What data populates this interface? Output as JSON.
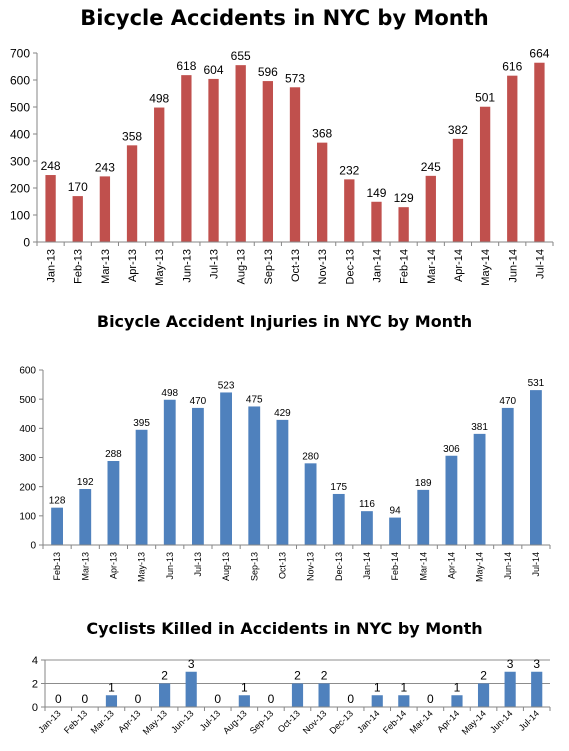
{
  "chart_data": [
    {
      "type": "bar",
      "title": "Bicycle Accidents in NYC by Month",
      "categories": [
        "Jan-13",
        "Feb-13",
        "Mar-13",
        "Apr-13",
        "May-13",
        "Jun-13",
        "Jul-13",
        "Aug-13",
        "Sep-13",
        "Oct-13",
        "Nov-13",
        "Dec-13",
        "Jan-14",
        "Feb-14",
        "Mar-14",
        "Apr-14",
        "May-14",
        "Jun-14",
        "Jul-14"
      ],
      "series": [
        {
          "values": [
            248,
            170,
            243,
            358,
            498,
            618,
            604,
            655,
            596,
            573,
            368,
            232,
            149,
            129,
            245,
            382,
            501,
            616,
            664
          ],
          "color": "#c0504d"
        }
      ],
      "ylim": [
        0,
        700
      ],
      "yticks": [
        0,
        100,
        200,
        300,
        400,
        500,
        600,
        700
      ],
      "grid": false,
      "data_labels": true
    },
    {
      "type": "bar",
      "title": "Bicycle Accident Injuries in NYC by Month",
      "categories": [
        "Feb-13",
        "Mar-13",
        "Apr-13",
        "May-13",
        "Jun-13",
        "Jul-13",
        "Aug-13",
        "Sep-13",
        "Oct-13",
        "Nov-13",
        "Dec-13",
        "Jan-14",
        "Feb-14",
        "Mar-14",
        "Apr-14",
        "May-14",
        "Jun-14",
        "Jul-14"
      ],
      "series": [
        {
          "values": [
            128,
            192,
            288,
            395,
            498,
            470,
            523,
            475,
            429,
            280,
            175,
            116,
            94,
            189,
            306,
            381,
            470,
            531
          ],
          "color": "#4f81bd"
        }
      ],
      "ylim": [
        0,
        600
      ],
      "yticks": [
        0,
        100,
        200,
        300,
        400,
        500,
        600
      ],
      "grid": false,
      "data_labels": true
    },
    {
      "type": "bar",
      "title": "Cyclists Killed in Accidents in NYC by Month",
      "categories": [
        "Jan-13",
        "Feb-13",
        "Mar-13",
        "Apr-13",
        "May-13",
        "Jun-13",
        "Jul-13",
        "Aug-13",
        "Sep-13",
        "Oct-13",
        "Nov-13",
        "Dec-13",
        "Jan-14",
        "Feb-14",
        "Mar-14",
        "Apr-14",
        "May-14",
        "Jun-14",
        "Jul-14"
      ],
      "series": [
        {
          "values": [
            0,
            0,
            1,
            0,
            2,
            3,
            0,
            1,
            0,
            2,
            2,
            0,
            1,
            1,
            0,
            1,
            2,
            3,
            3
          ],
          "color": "#4f81bd"
        }
      ],
      "ylim": [
        0,
        4
      ],
      "yticks": [
        0,
        2,
        4
      ],
      "grid": true,
      "data_labels": true
    }
  ]
}
